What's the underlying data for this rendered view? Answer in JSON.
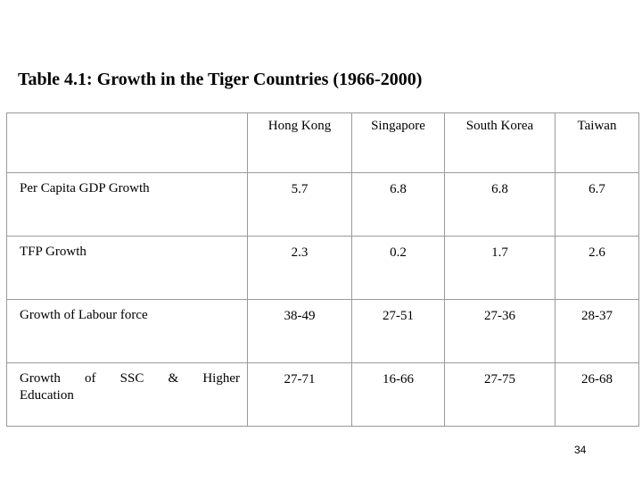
{
  "title": "Table 4.1: Growth in the Tiger Countries (1966-2000)",
  "columns": [
    "Hong Kong",
    "Singapore",
    "South Korea",
    "Taiwan"
  ],
  "rows": [
    {
      "label": "Per Capita GDP Growth",
      "values": [
        "5.7",
        "6.8",
        "6.8",
        "6.7"
      ]
    },
    {
      "label": "TFP Growth",
      "values": [
        "2.3",
        "0.2",
        "1.7",
        "2.6"
      ]
    },
    {
      "label": "Growth of Labour force",
      "values": [
        "38-49",
        "27-51",
        "27-36",
        "28-37"
      ]
    },
    {
      "label_line1": "Growth of SSC & Higher",
      "label_line2": "Education",
      "values": [
        "27-71",
        "16-66",
        "27-75",
        "26-68"
      ]
    }
  ],
  "page_number": "34"
}
